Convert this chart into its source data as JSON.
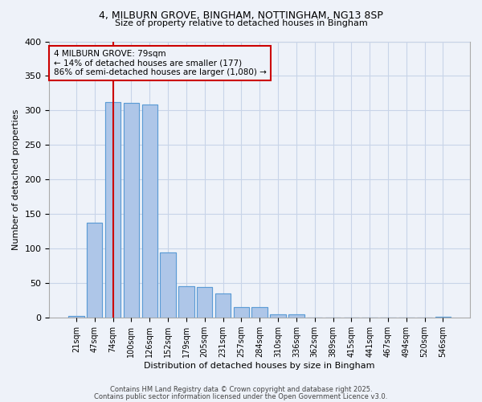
{
  "title_line1": "4, MILBURN GROVE, BINGHAM, NOTTINGHAM, NG13 8SP",
  "title_line2": "Size of property relative to detached houses in Bingham",
  "xlabel": "Distribution of detached houses by size in Bingham",
  "ylabel": "Number of detached properties",
  "categories": [
    "21sqm",
    "47sqm",
    "74sqm",
    "100sqm",
    "126sqm",
    "152sqm",
    "179sqm",
    "205sqm",
    "231sqm",
    "257sqm",
    "284sqm",
    "310sqm",
    "336sqm",
    "362sqm",
    "389sqm",
    "415sqm",
    "441sqm",
    "467sqm",
    "494sqm",
    "520sqm",
    "546sqm"
  ],
  "values": [
    3,
    138,
    312,
    311,
    309,
    94,
    46,
    45,
    35,
    15,
    15,
    5,
    5,
    0,
    0,
    0,
    0,
    0,
    0,
    0,
    2
  ],
  "bar_color": "#aec6e8",
  "bar_edge_color": "#5b9bd5",
  "grid_color": "#c8d4e8",
  "background_color": "#eef2f9",
  "vline_x": 2.0,
  "vline_color": "#cc0000",
  "annotation_text": "4 MILBURN GROVE: 79sqm\n← 14% of detached houses are smaller (177)\n86% of semi-detached houses are larger (1,080) →",
  "annotation_box_color": "#cc0000",
  "ylim": [
    0,
    400
  ],
  "yticks": [
    0,
    50,
    100,
    150,
    200,
    250,
    300,
    350,
    400
  ],
  "footer_line1": "Contains HM Land Registry data © Crown copyright and database right 2025.",
  "footer_line2": "Contains public sector information licensed under the Open Government Licence v3.0."
}
